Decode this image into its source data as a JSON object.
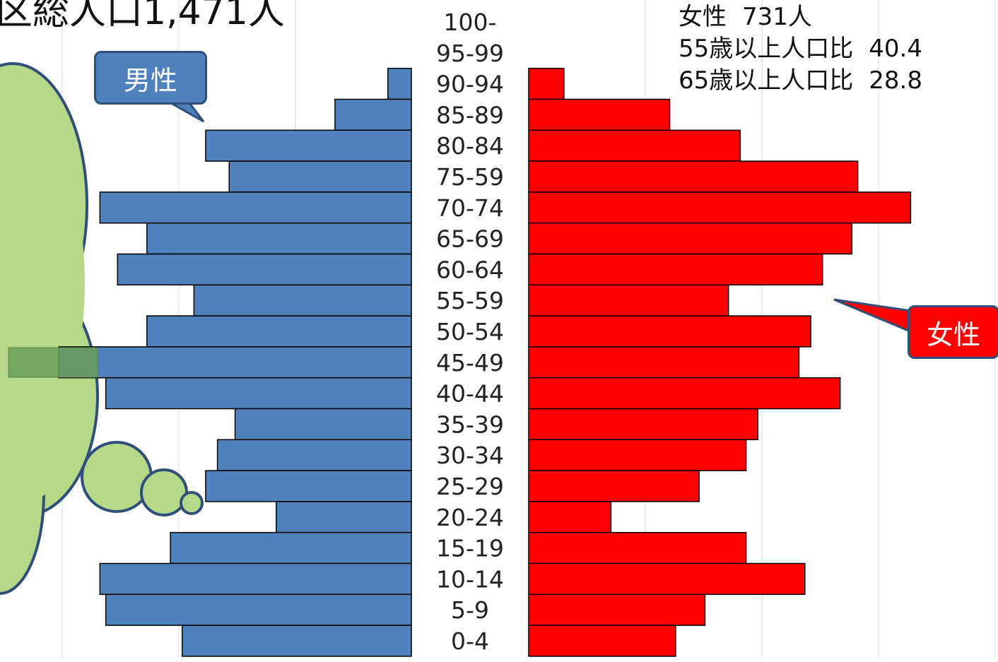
{
  "title": "区総人口1,471人",
  "stats": {
    "female_label": "女性",
    "female_value": "731人",
    "ratio55_label": "55歳以上人口比",
    "ratio55_value": "40.4",
    "ratio65_label": "65歳以上人口比",
    "ratio65_value": "28.8"
  },
  "callouts": {
    "male": "男性",
    "female": "女性"
  },
  "colors": {
    "male": "#4f81bd",
    "female": "#ff0000",
    "cloud": "#b6d989",
    "cloud_border": "#2f4f7a"
  },
  "chart_data": {
    "type": "bar",
    "orientation": "horizontal-population-pyramid",
    "categories": [
      "100-",
      "95-99",
      "90-94",
      "85-89",
      "80-84",
      "75-59",
      "70-74",
      "65-69",
      "60-64",
      "55-59",
      "50-54",
      "45-49",
      "40-44",
      "35-39",
      "30-34",
      "25-29",
      "20-24",
      "15-19",
      "10-14",
      "5-9",
      "0-4"
    ],
    "series": [
      {
        "name": "男性",
        "values": [
          0,
          0,
          2,
          6.5,
          17.5,
          15.5,
          26.5,
          22.5,
          25,
          18.5,
          22.5,
          30,
          26,
          15,
          16.5,
          17.5,
          11.5,
          20.5,
          26.5,
          26,
          19.5
        ]
      },
      {
        "name": "女性",
        "values": [
          0,
          0,
          3,
          12,
          18,
          28,
          32.5,
          27.5,
          25,
          17,
          24,
          23,
          26.5,
          19.5,
          18.5,
          14.5,
          7,
          18.5,
          23.5,
          15,
          12.5
        ]
      }
    ],
    "xlim": [
      0,
      35
    ],
    "grid": true
  }
}
